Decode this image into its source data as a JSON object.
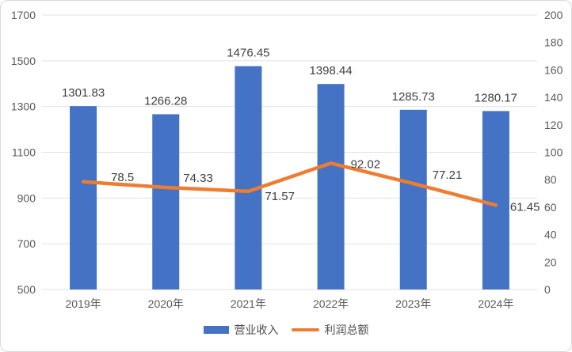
{
  "chart_data": {
    "type": "combo-bar-line",
    "categories": [
      "2019年",
      "2020年",
      "2021年",
      "2022年",
      "2023年",
      "2024年"
    ],
    "series": [
      {
        "name": "营业收入",
        "type": "bar",
        "axis": "left",
        "color": "#4472C4",
        "values": [
          1301.83,
          1266.28,
          1476.45,
          1398.44,
          1285.73,
          1280.17
        ],
        "labels": [
          "1301.83",
          "1266.28",
          "1476.45",
          "1398.44",
          "1285.73",
          "1280.17"
        ]
      },
      {
        "name": "利润总额",
        "type": "line",
        "axis": "right",
        "color": "#ED7D31",
        "values": [
          78.5,
          74.33,
          71.57,
          92.02,
          77.21,
          61.45
        ],
        "labels": [
          "78.5",
          "74.33",
          "71.57",
          "92.02",
          "77.21",
          "61.45"
        ]
      }
    ],
    "left_axis": {
      "min": 500,
      "max": 1700,
      "step": 200,
      "tick_labels": [
        "500",
        "700",
        "900",
        "1100",
        "1300",
        "1500",
        "1700"
      ]
    },
    "right_axis": {
      "min": 0,
      "max": 200,
      "step": 20,
      "tick_labels": [
        "0",
        "20",
        "40",
        "60",
        "80",
        "100",
        "120",
        "140",
        "160",
        "180",
        "200"
      ]
    },
    "grid": true,
    "legend_position": "bottom",
    "title": ""
  },
  "colors": {
    "bar": "#4472C4",
    "line": "#ED7D31",
    "grid": "#E2E2E2",
    "axis_text": "#595959",
    "data_label": "#3F3F3F",
    "border": "#D9D9D9",
    "background": "#FFFFFF"
  }
}
